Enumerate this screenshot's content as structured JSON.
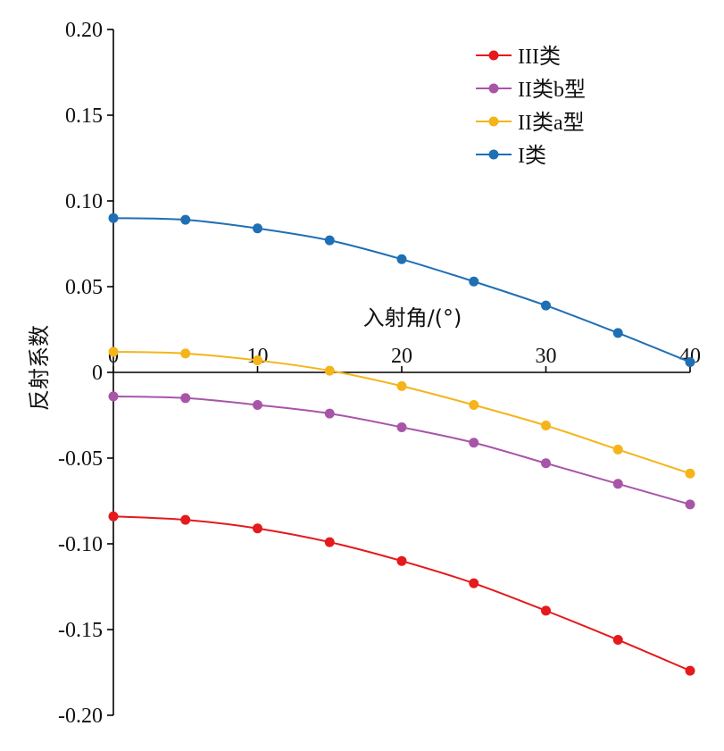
{
  "chart_data": {
    "type": "line",
    "xlabel": "入射角/(°)",
    "ylabel": "反射系数",
    "xlim": [
      0,
      40
    ],
    "ylim": [
      -0.2,
      0.2
    ],
    "x_ticks": [
      "0",
      "10",
      "20",
      "30",
      "40"
    ],
    "y_ticks": [
      "0.20",
      "0.15",
      "0.10",
      "0.05",
      "0",
      "-0.05",
      "-0.10",
      "-0.15",
      "-0.20"
    ],
    "x_tick_values": [
      0,
      10,
      20,
      30,
      40
    ],
    "y_tick_values": [
      0.2,
      0.15,
      0.1,
      0.05,
      0,
      -0.05,
      -0.1,
      -0.15,
      -0.2
    ],
    "x": [
      0,
      5,
      10,
      15,
      20,
      25,
      30,
      35,
      40
    ],
    "legend_position": "top-right",
    "grid": false,
    "series": [
      {
        "name": "III类",
        "color": "#e41a1c",
        "values": [
          -0.084,
          -0.086,
          -0.091,
          -0.099,
          -0.11,
          -0.123,
          -0.139,
          -0.156,
          -0.174
        ]
      },
      {
        "name": "II类b型",
        "color": "#a855a8",
        "values": [
          -0.014,
          -0.015,
          -0.019,
          -0.024,
          -0.032,
          -0.041,
          -0.053,
          -0.065,
          -0.077
        ]
      },
      {
        "name": "II类a型",
        "color": "#f5b41a",
        "values": [
          0.012,
          0.011,
          0.007,
          0.001,
          -0.008,
          -0.019,
          -0.031,
          -0.045,
          -0.059
        ]
      },
      {
        "name": "I类",
        "color": "#1f6fb5",
        "values": [
          0.09,
          0.089,
          0.084,
          0.077,
          0.066,
          0.053,
          0.039,
          0.023,
          0.006
        ]
      }
    ]
  }
}
